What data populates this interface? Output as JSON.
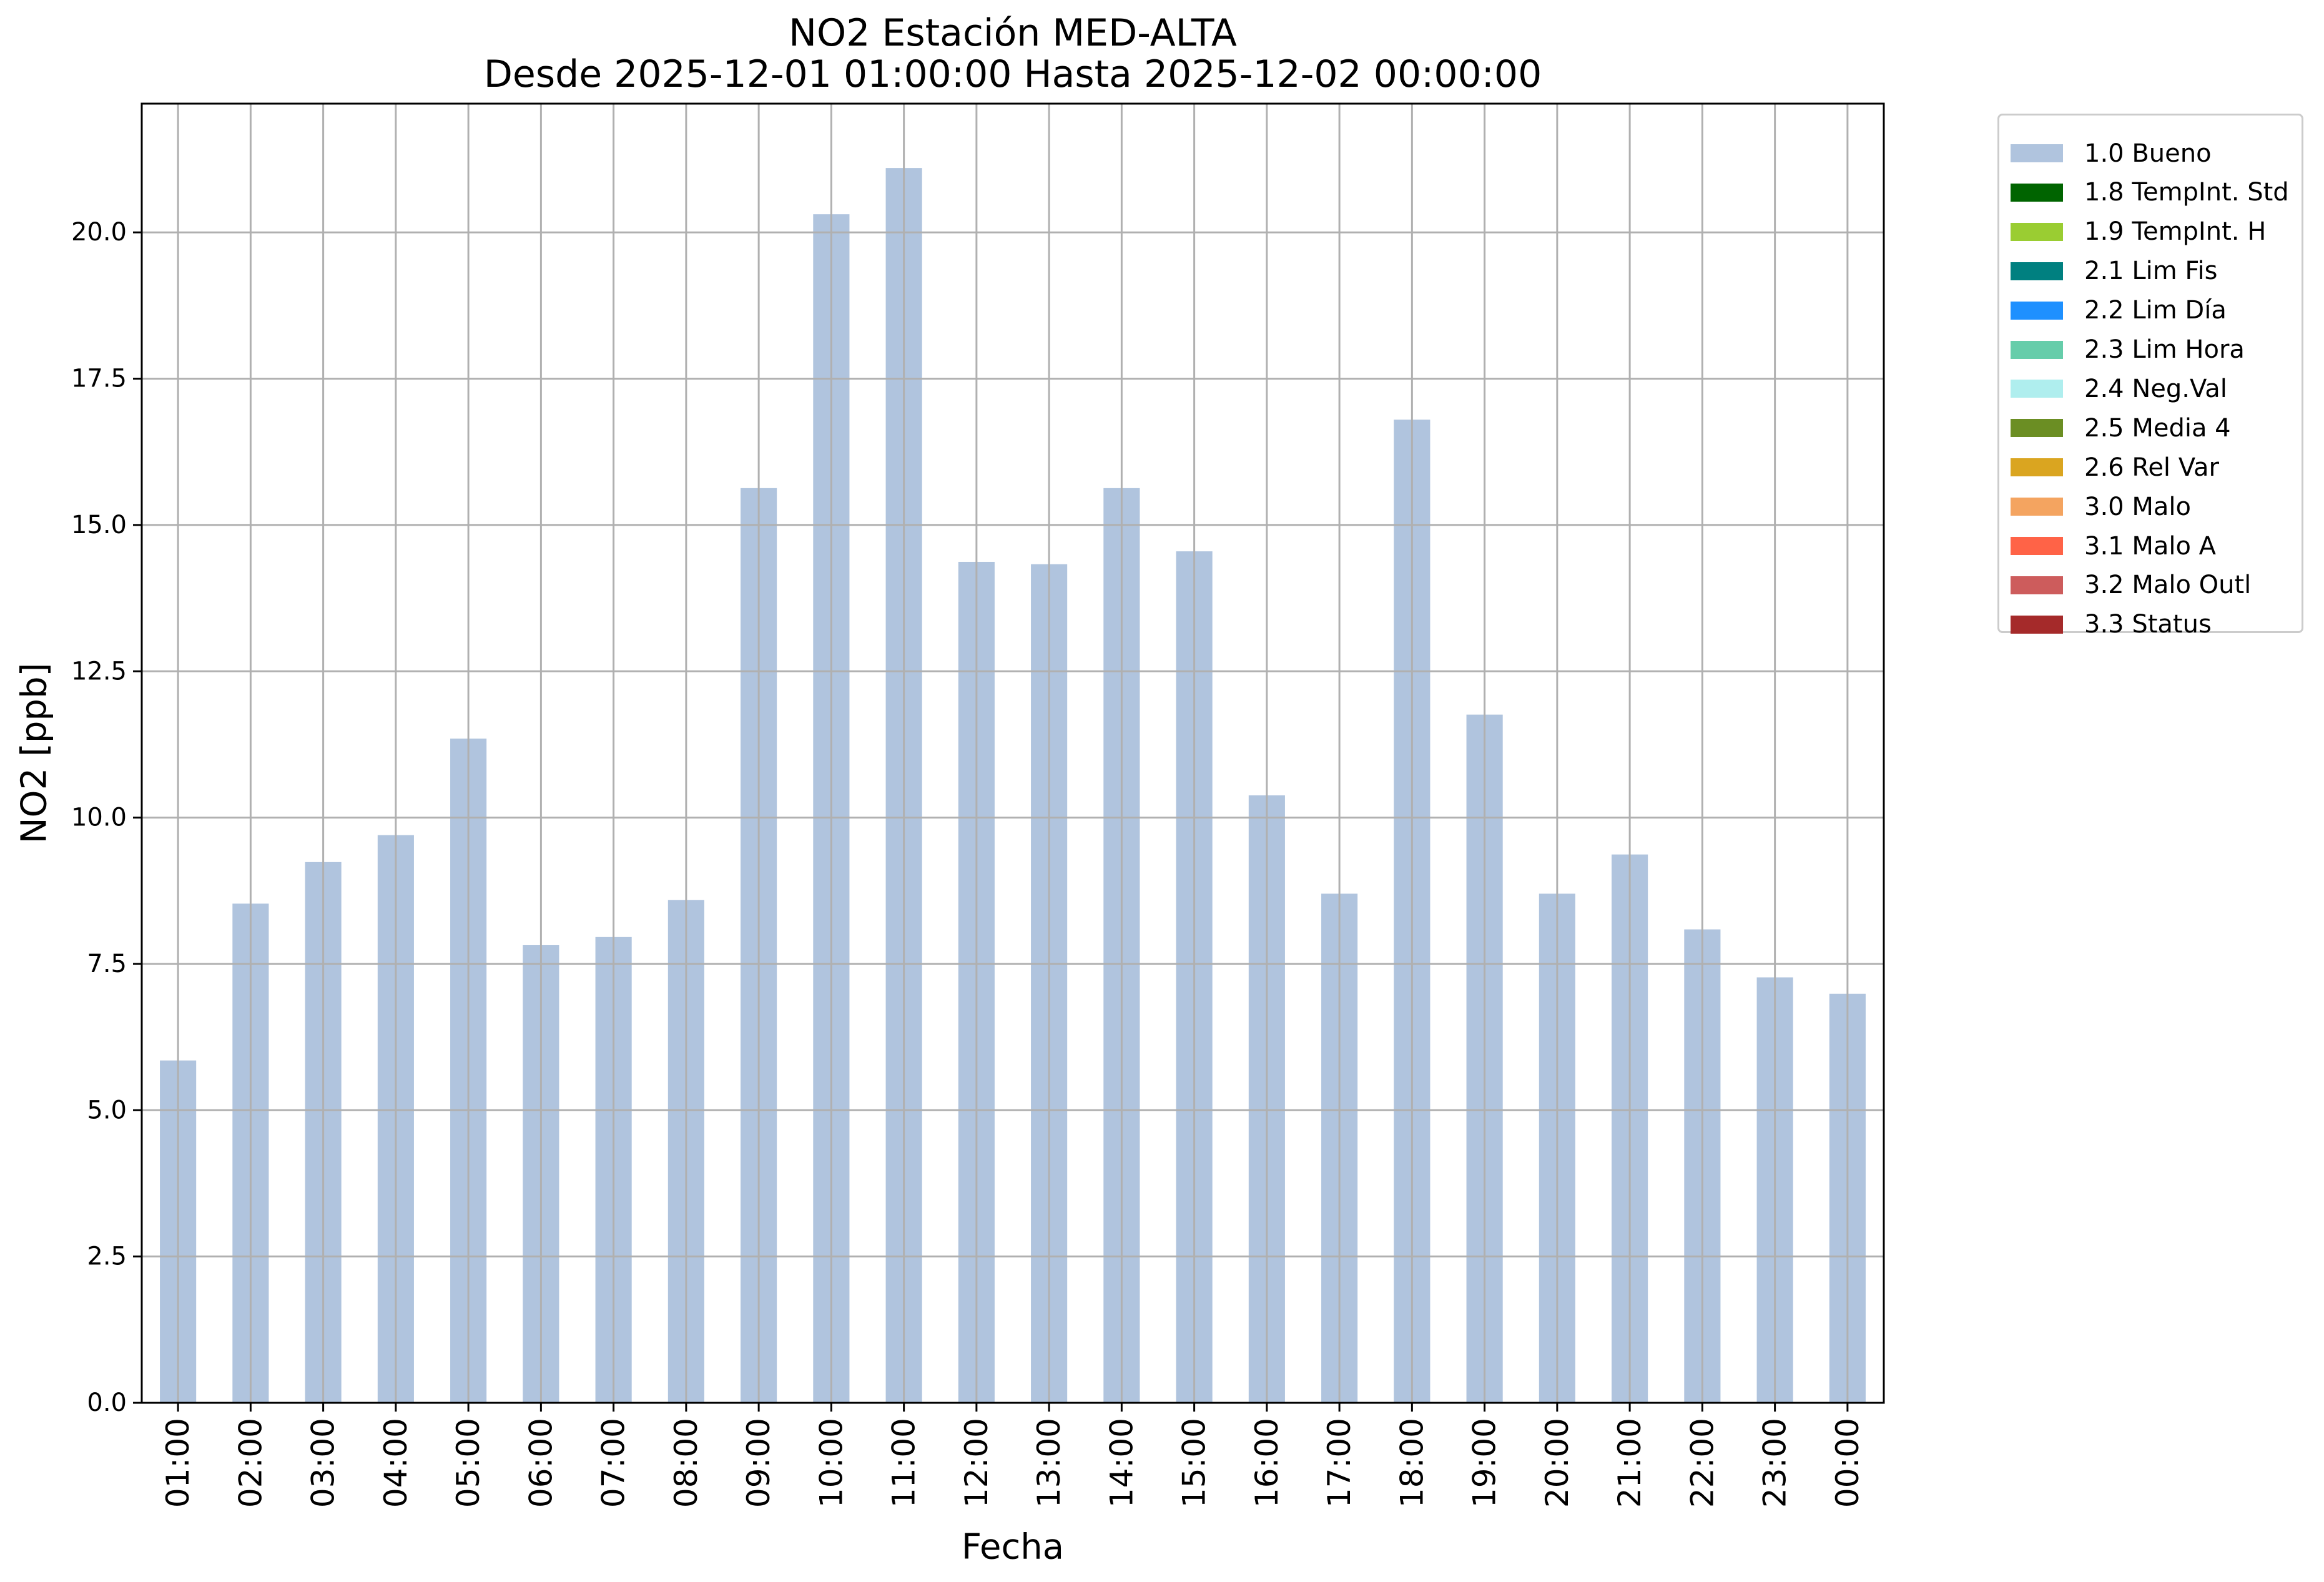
{
  "chart_data": {
    "type": "bar",
    "title": "NO2 Estación MED-ALTA",
    "subtitle": "Desde 2025-12-01 01:00:00 Hasta 2025-12-02 00:00:00",
    "xlabel": "Fecha",
    "ylabel": "NO2 [ppb]",
    "ylim": [
      0,
      22.2
    ],
    "yticks": [
      "0.0",
      "2.5",
      "5.0",
      "7.5",
      "10.0",
      "12.5",
      "15.0",
      "17.5",
      "20.0"
    ],
    "categories": [
      "01:00",
      "02:00",
      "03:00",
      "04:00",
      "05:00",
      "06:00",
      "07:00",
      "08:00",
      "09:00",
      "10:00",
      "11:00",
      "12:00",
      "13:00",
      "14:00",
      "15:00",
      "16:00",
      "17:00",
      "18:00",
      "19:00",
      "20:00",
      "21:00",
      "22:00",
      "23:00",
      "00:00"
    ],
    "series": [
      {
        "name": "1.0 Bueno",
        "color": "#b0c4de",
        "values": [
          5.85,
          8.53,
          9.24,
          9.7,
          11.35,
          7.82,
          7.96,
          8.59,
          15.63,
          20.31,
          21.1,
          14.37,
          14.33,
          15.63,
          14.55,
          10.38,
          8.7,
          16.8,
          11.76,
          8.7,
          9.37,
          8.09,
          7.27,
          6.99
        ]
      }
    ],
    "legend": [
      {
        "label": "1.0 Bueno",
        "color": "#b0c4de"
      },
      {
        "label": "1.8 TempInt. Std",
        "color": "#006400"
      },
      {
        "label": "1.9 TempInt. H",
        "color": "#9acd32"
      },
      {
        "label": "2.1 Lim Fis",
        "color": "#008080"
      },
      {
        "label": "2.2 Lim Día",
        "color": "#1e90ff"
      },
      {
        "label": "2.3 Lim Hora",
        "color": "#66cdaa"
      },
      {
        "label": "2.4 Neg.Val",
        "color": "#afeeee"
      },
      {
        "label": "2.5 Media 4",
        "color": "#6b8e23"
      },
      {
        "label": "2.6 Rel Var",
        "color": "#daa520"
      },
      {
        "label": "3.0 Malo",
        "color": "#f4a460"
      },
      {
        "label": "3.1 Malo A",
        "color": "#ff6347"
      },
      {
        "label": "3.2 Malo Outl",
        "color": "#cd5c5c"
      },
      {
        "label": "3.3 Status",
        "color": "#a52a2a"
      }
    ],
    "legend_position": "outside-top-right",
    "grid": true,
    "grid_color": "#b0b0b0"
  }
}
